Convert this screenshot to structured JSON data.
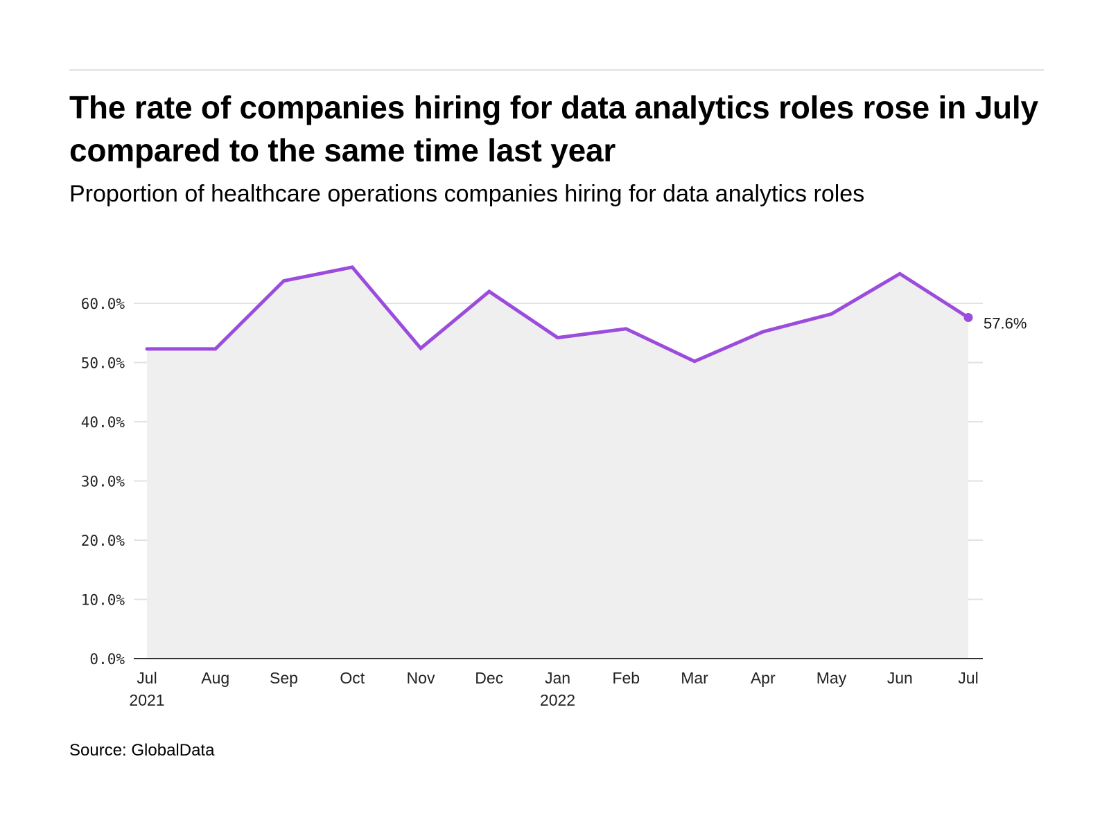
{
  "header": {
    "title": "The rate of companies hiring for data analytics roles rose in July compared to the same time last year",
    "subtitle": "Proportion of healthcare operations companies hiring for data analytics roles"
  },
  "footer": {
    "source": "Source: GlobalData"
  },
  "colors": {
    "line": "#9b4cdc",
    "area": "#efefef",
    "grid": "#e2e2e2",
    "axis": "#333333"
  },
  "chart_data": {
    "type": "area",
    "title": "The rate of companies hiring for data analytics roles rose in July compared to the same time last year",
    "subtitle": "Proportion of healthcare operations companies hiring for data analytics roles",
    "xlabel": "",
    "ylabel": "",
    "categories": [
      "Jul 2021",
      "Aug 2021",
      "Sep 2021",
      "Oct 2021",
      "Nov 2021",
      "Dec 2021",
      "Jan 2022",
      "Feb 2022",
      "Mar 2022",
      "Apr 2022",
      "May 2022",
      "Jun 2022",
      "Jul 2022"
    ],
    "x_tick_labels": [
      {
        "line1": "Jul",
        "line2": "2021"
      },
      {
        "line1": "Aug",
        "line2": ""
      },
      {
        "line1": "Sep",
        "line2": ""
      },
      {
        "line1": "Oct",
        "line2": ""
      },
      {
        "line1": "Nov",
        "line2": ""
      },
      {
        "line1": "Dec",
        "line2": ""
      },
      {
        "line1": "Jan",
        "line2": "2022"
      },
      {
        "line1": "Feb",
        "line2": ""
      },
      {
        "line1": "Mar",
        "line2": ""
      },
      {
        "line1": "Apr",
        "line2": ""
      },
      {
        "line1": "May",
        "line2": ""
      },
      {
        "line1": "Jun",
        "line2": ""
      },
      {
        "line1": "Jul",
        "line2": ""
      }
    ],
    "series": [
      {
        "name": "Proportion of companies hiring",
        "values": [
          52.3,
          52.3,
          63.8,
          66.1,
          52.4,
          62.0,
          54.2,
          55.7,
          50.2,
          55.2,
          58.2,
          65.0,
          57.6
        ]
      }
    ],
    "y_ticks": [
      0,
      10,
      20,
      30,
      40,
      50,
      60
    ],
    "y_tick_labels": [
      "0.0%",
      "10.0%",
      "20.0%",
      "30.0%",
      "40.0%",
      "50.0%",
      "60.0%"
    ],
    "ylim": [
      0,
      67
    ],
    "grid": true,
    "end_label": "57.6%",
    "legend": "none"
  }
}
